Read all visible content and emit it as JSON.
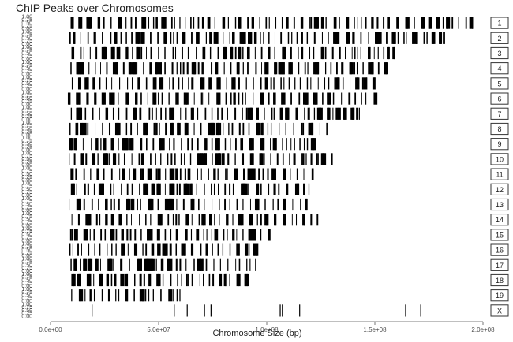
{
  "chart_data": {
    "type": "barcode",
    "title": "ChIP Peaks over Chromosomes",
    "xlabel": "Chromosome Size (bp)",
    "ylabel": "",
    "xlim": [
      0,
      200000000
    ],
    "x_ticks": [
      0,
      50000000,
      100000000,
      150000000,
      200000000
    ],
    "x_tick_labels": [
      "0.0e+00",
      "5.0e+07",
      "1.0e+08",
      "1.5e+08",
      "2.0e+08"
    ],
    "ylim": [
      0,
      1
    ],
    "y_tick_labels": [
      "0.00",
      "0.25",
      "0.50",
      "0.75",
      "1.00"
    ],
    "grid": false,
    "facets": [
      {
        "label": "1",
        "length": 195000000,
        "peaks": "dense"
      },
      {
        "label": "2",
        "length": 182000000,
        "peaks": "dense"
      },
      {
        "label": "3",
        "length": 160000000,
        "peaks": "dense"
      },
      {
        "label": "4",
        "length": 157000000,
        "peaks": "dense"
      },
      {
        "label": "5",
        "length": 152000000,
        "peaks": "dense"
      },
      {
        "label": "6",
        "length": 150000000,
        "peaks": "dense"
      },
      {
        "label": "7",
        "length": 145000000,
        "peaks": "dense"
      },
      {
        "label": "8",
        "length": 130000000,
        "peaks": "dense"
      },
      {
        "label": "9",
        "length": 124000000,
        "peaks": "dense"
      },
      {
        "label": "10",
        "length": 130000000,
        "peaks": "dense"
      },
      {
        "label": "11",
        "length": 122000000,
        "peaks": "dense"
      },
      {
        "label": "12",
        "length": 120000000,
        "peaks": "dense"
      },
      {
        "label": "13",
        "length": 120000000,
        "peaks": "dense"
      },
      {
        "label": "14",
        "length": 125000000,
        "peaks": "dense"
      },
      {
        "label": "15",
        "length": 104000000,
        "peaks": "dense"
      },
      {
        "label": "16",
        "length": 98000000,
        "peaks": "dense"
      },
      {
        "label": "17",
        "length": 95000000,
        "peaks": "dense"
      },
      {
        "label": "18",
        "length": 91000000,
        "peaks": "dense"
      },
      {
        "label": "19",
        "length": 61000000,
        "peaks": "dense"
      },
      {
        "label": "X",
        "peaks": [
          19000000,
          57000000,
          63000000,
          71000000,
          74000000,
          106000000,
          107000000,
          115000000,
          164000000,
          171000000
        ]
      }
    ],
    "colors": {
      "peak": "#000000",
      "strip_border": "#333333",
      "axis": "#555555",
      "background": "#ffffff"
    }
  }
}
